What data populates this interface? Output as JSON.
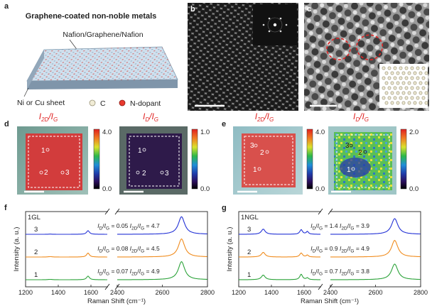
{
  "panel_labels": {
    "a": "a",
    "b": "b",
    "c": "c",
    "d": "d",
    "e": "e",
    "f": "f",
    "g": "g"
  },
  "panel_a": {
    "title": "Graphene-coated non-noble metals",
    "layer_label": "Nafion/Graphene/Nafion",
    "substrate_label": "Ni or Cu sheet",
    "legend_c": "C",
    "legend_n": "N-dopant",
    "colors": {
      "carbon": "#f1ecd6",
      "nitrogen": "#e83a2e",
      "slab_top": "#c8dcee",
      "slab_side": "#7f95aa"
    }
  },
  "maps": {
    "d": [
      {
        "ratio": "I",
        "sub1": "2D",
        "sep": "/I",
        "sub2": "G",
        "cmax": "4.0",
        "cmin": "0.0",
        "point_labels": [
          "1",
          "2",
          "3"
        ],
        "fill": "#d23c3c"
      },
      {
        "ratio": "I",
        "sub1": "D",
        "sep": "/I",
        "sub2": "G",
        "cmax": "1.0",
        "cmin": "0.0",
        "point_labels": [
          "1",
          "2",
          "3"
        ],
        "fill": "#3a1e58"
      }
    ],
    "e": [
      {
        "ratio": "I",
        "sub1": "2D",
        "sep": "/I",
        "sub2": "G",
        "cmax": "4.0",
        "cmin": "0.0",
        "point_labels": [
          "3",
          "2",
          "1"
        ],
        "fill": "#d8504c"
      },
      {
        "ratio": "I",
        "sub1": "D",
        "sep": "/I",
        "sub2": "G",
        "cmax": "2.0",
        "cmin": "0.0",
        "point_labels": [
          "3",
          "2",
          "1"
        ],
        "fill": "#52b54a"
      }
    ]
  },
  "chart_data": [
    {
      "type": "line",
      "panel": "f",
      "sample_label": "1GL",
      "xlabel": "Raman Shift (cm⁻¹)",
      "ylabel": "Intensity (a. u.)",
      "x_ticks": [
        "1200",
        "1400",
        "1600",
        "2400",
        "2600",
        "2800"
      ],
      "axis_break": [
        1700,
        2400
      ],
      "series": [
        {
          "name": "3",
          "color": "#2332d6",
          "offset": 2,
          "peaks": {
            "D": 0.01,
            "G": 0.2,
            "D2": 0,
            "2D": 0.95
          },
          "annotation_D": "0.05",
          "annotation_2D": "4.7"
        },
        {
          "name": "2",
          "color": "#f08c1e",
          "offset": 1,
          "peaks": {
            "D": 0.02,
            "G": 0.22,
            "D2": 0,
            "2D": 0.98
          },
          "annotation_D": "0.08",
          "annotation_2D": "4.5"
        },
        {
          "name": "1",
          "color": "#2ca33a",
          "offset": 0,
          "peaks": {
            "D": 0.02,
            "G": 0.2,
            "D2": 0,
            "2D": 0.98
          },
          "annotation_D": "0.07",
          "annotation_2D": "4.9"
        }
      ]
    },
    {
      "type": "line",
      "panel": "g",
      "sample_label": "1NGL",
      "xlabel": "Raman Shift (cm⁻¹)",
      "ylabel": "Intensity (a. u.)",
      "x_ticks": [
        "1200",
        "1400",
        "1600",
        "2400",
        "2600",
        "2800"
      ],
      "axis_break": [
        1700,
        2400
      ],
      "series": [
        {
          "name": "3",
          "color": "#2332d6",
          "offset": 2,
          "peaks": {
            "D": 0.28,
            "G": 0.25,
            "D2": 0.15,
            "2D": 0.85
          },
          "annotation_D": "1.4",
          "annotation_2D": "3.9"
        },
        {
          "name": "2",
          "color": "#f08c1e",
          "offset": 1,
          "peaks": {
            "D": 0.25,
            "G": 0.22,
            "D2": 0.1,
            "2D": 0.9
          },
          "annotation_D": "0.9",
          "annotation_2D": "4.9"
        },
        {
          "name": "1",
          "color": "#2ca33a",
          "offset": 0,
          "peaks": {
            "D": 0.25,
            "G": 0.3,
            "D2": 0.1,
            "2D": 0.85
          },
          "annotation_D": "0.7",
          "annotation_2D": "3.8"
        }
      ]
    }
  ]
}
